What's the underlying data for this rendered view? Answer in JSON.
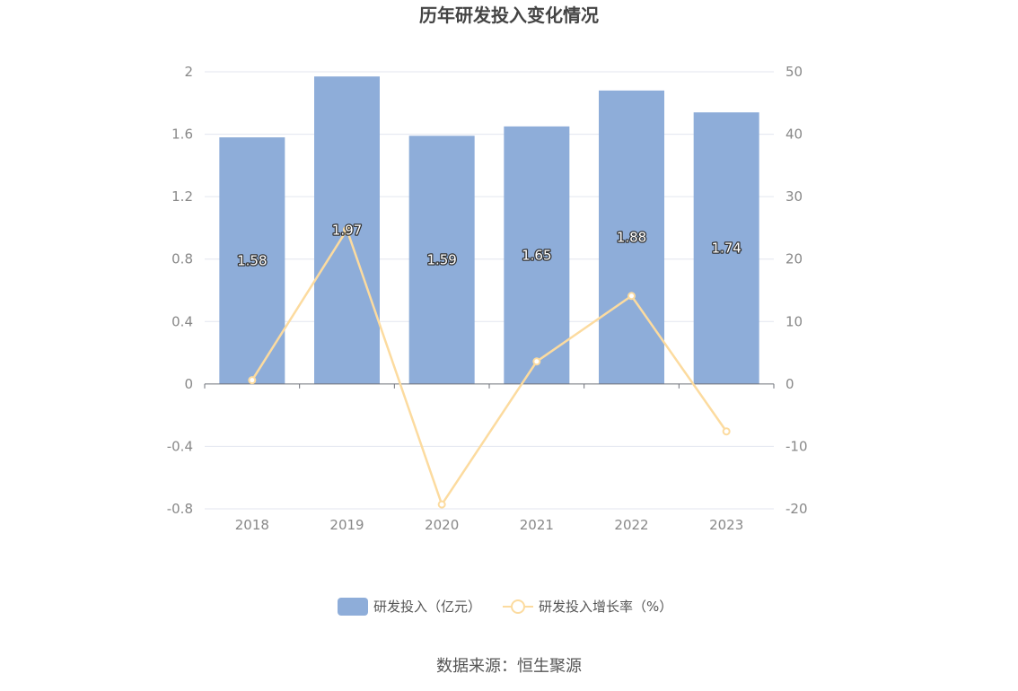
{
  "chart_data": {
    "type": "bar",
    "title": "历年研发投入变化情况",
    "categories": [
      "2018",
      "2019",
      "2020",
      "2021",
      "2022",
      "2023"
    ],
    "series": [
      {
        "name": "研发投入（亿元）",
        "type": "bar",
        "axis": "left",
        "values": [
          1.58,
          1.97,
          1.59,
          1.65,
          1.88,
          1.74
        ],
        "color": "#8eadd9"
      },
      {
        "name": "研发投入增长率（%）",
        "type": "line",
        "axis": "right",
        "values": [
          0.6,
          24.7,
          -19.3,
          3.6,
          14.1,
          -7.6
        ],
        "color": "#fcdb9f"
      }
    ],
    "y_left": {
      "min": -0.8,
      "max": 2,
      "ticks": [
        "2",
        "1.6",
        "1.2",
        "0.8",
        "0.4",
        "0",
        "-0.4",
        "-0.8"
      ]
    },
    "y_right": {
      "min": -20,
      "max": 50,
      "ticks": [
        "50",
        "40",
        "30",
        "20",
        "10",
        "0",
        "-10",
        "-20"
      ]
    },
    "grid": true,
    "legend_position": "bottom-center"
  },
  "source": "数据来源：恒生聚源"
}
